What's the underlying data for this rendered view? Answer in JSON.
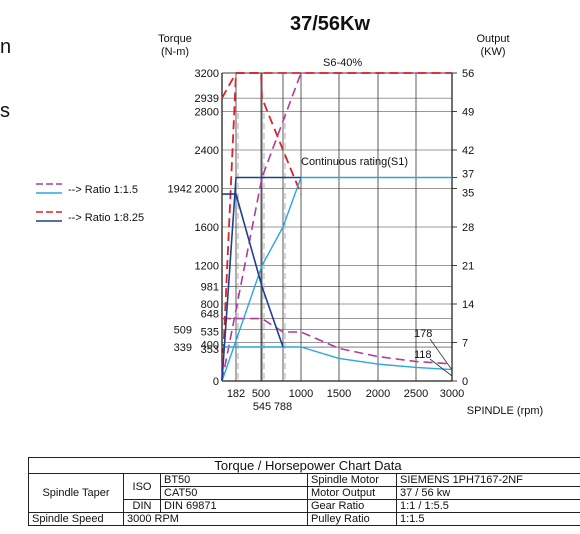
{
  "edge": {
    "left_top": "n",
    "left_mid": "s"
  },
  "legend": {
    "ratio1": "--> Ratio 1:1.5",
    "ratio2": "--> Ratio 1:8.25"
  },
  "colors": {
    "torque_ratio1": "#b03a9e",
    "torque_ratio2": "#d8242c",
    "power_ratio1": "#2aa7e0",
    "power_ratio2": "#1f3f8f"
  },
  "chart_data": {
    "type": "line",
    "title": "37/56Kw",
    "xlabel": "SPINDLE (rpm)",
    "ylabel_left": "Torque\n(N-m)",
    "ylabel_right": "Output\n(KW)",
    "xlim": [
      0,
      3000
    ],
    "ylim_left": [
      0,
      3200
    ],
    "ylim_right": [
      0,
      56
    ],
    "x_ticks": [
      "182",
      "500",
      "1000",
      "1500",
      "2000",
      "2500",
      "3000"
    ],
    "x_ticks_lower": [
      "545",
      "788"
    ],
    "y_ticks_left": [
      "3200",
      "2939",
      "2800",
      "2400",
      "2000",
      "1600",
      "1200",
      "981",
      "800",
      "648",
      "535",
      "400",
      "353",
      "0"
    ],
    "y_ticks_left_outer": [
      "1942",
      "509",
      "339"
    ],
    "y_ticks_right": [
      "56",
      "49",
      "42",
      "37",
      "35",
      "28",
      "21",
      "14",
      "7",
      "0"
    ],
    "annotations": {
      "s6": "S6-40%",
      "s1": "Continuous rating(S1)",
      "v178": "178",
      "v118": "118"
    },
    "series": [
      {
        "name": "Ratio 1:1.5 torque S6",
        "x": [
          0,
          182,
          545,
          788,
          1000,
          1500,
          2000,
          2500,
          3000
        ],
        "y": [
          648,
          648,
          648,
          509,
          509,
          339,
          254,
          203,
          178
        ]
      },
      {
        "name": "Ratio 1:1.5 power S6",
        "x": [
          0,
          545,
          1000,
          3000
        ],
        "y": [
          0,
          37,
          56,
          56
        ]
      },
      {
        "name": "Ratio 1:8.25 torque S6",
        "x": [
          0,
          182,
          500,
          545,
          788,
          1000
        ],
        "y": [
          2939,
          3200,
          3200,
          2939,
          2400,
          1942
        ]
      },
      {
        "name": "Ratio 1:8.25 power S6",
        "x": [
          0,
          182,
          500,
          1000,
          3000
        ],
        "y": [
          0,
          56,
          56,
          56,
          56
        ]
      },
      {
        "name": "Ratio 1:1.5 power S1",
        "x": [
          0,
          545,
          788,
          1000,
          3000
        ],
        "y": [
          0,
          21,
          28,
          37,
          37
        ]
      },
      {
        "name": "Ratio 1:1.5 torque S1",
        "x": [
          0,
          545,
          788,
          1000,
          1500,
          2000,
          2500,
          3000
        ],
        "y": [
          353,
          353,
          353,
          353,
          235,
          176,
          141,
          118
        ]
      },
      {
        "name": "Ratio 1:8.25 torque S1",
        "x": [
          0,
          182,
          545,
          788
        ],
        "y": [
          1942,
          1942,
          981,
          353
        ]
      },
      {
        "name": "Ratio 1:8.25 power S1",
        "x": [
          0,
          182,
          500,
          1000
        ],
        "y": [
          0,
          37,
          37,
          37
        ]
      }
    ]
  },
  "table": {
    "caption": "Torque / Horsepower Chart Data",
    "spindle_taper": "Spindle Taper",
    "iso": "ISO",
    "din": "DIN",
    "bt50": "BT50",
    "cat50": "CAT50",
    "din69871": "DIN 69871",
    "spindle_speed": "Spindle Speed",
    "spindle_speed_value": "3000 RPM",
    "spindle_motor": "Spindle Motor",
    "spindle_motor_value": "SIEMENS 1PH7167-2NF",
    "motor_output": "Motor Output",
    "motor_output_value": "37 / 56 kw",
    "gear_ratio": "Gear Ratio",
    "gear_ratio_value": "1:1 / 1:5.5",
    "pulley_ratio": "Pulley Ratio",
    "pulley_ratio_value": "1:1.5"
  }
}
